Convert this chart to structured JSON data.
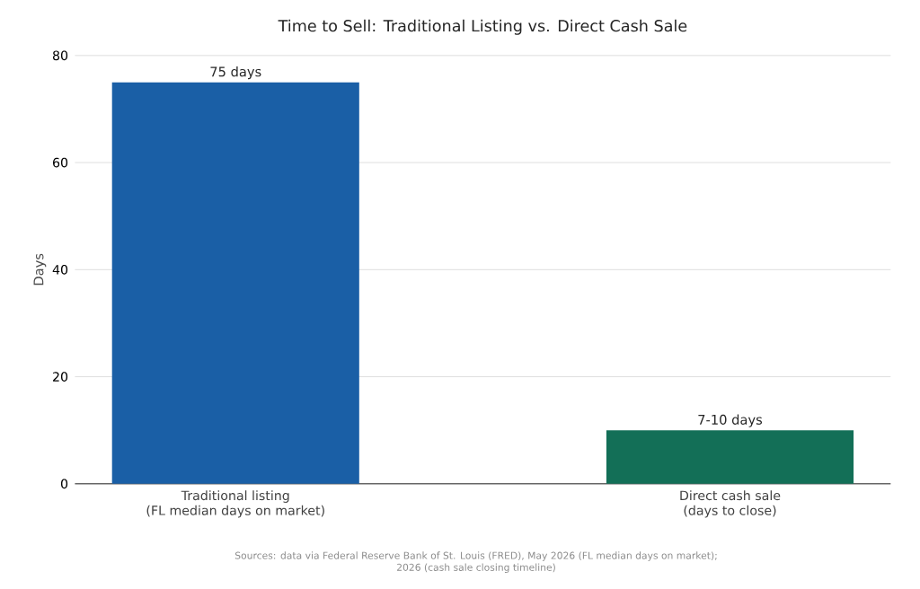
{
  "chart_data": {
    "type": "bar",
    "title": "Time to Sell: Traditional Listing vs. Direct Cash Sale",
    "categories": [
      "Traditional listing\n(FL median days on market)",
      "Direct cash sale\n(days to close)"
    ],
    "values": [
      75,
      10
    ],
    "colors": [
      "#1a5fa6",
      "#136f57"
    ],
    "value_labels": [
      "75 days",
      "7-10 days"
    ],
    "ylabel": "Days",
    "ylim": [
      0,
      80
    ],
    "yticks": [
      0,
      20,
      40,
      60,
      80
    ],
    "grid": "y",
    "annotations": [
      "Sources: data via Federal Reserve Bank of St. Louis (FRED), May 2026 (FL median days on market);\n2026 (cash sale closing timeline)"
    ]
  }
}
